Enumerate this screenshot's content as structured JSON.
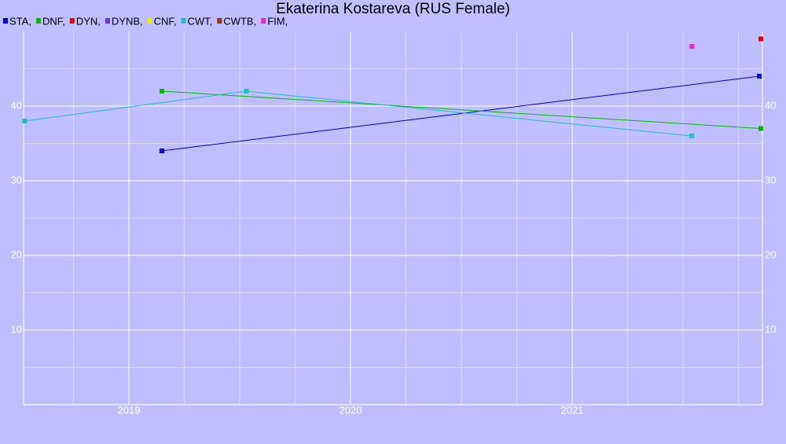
{
  "chart_data": {
    "type": "line",
    "title": "Ekaterina Kostareva (RUS Female)",
    "xlim": [
      2018.525,
      2021.858
    ],
    "xticks": [
      2019,
      2020,
      2021
    ],
    "ylim": [
      0,
      50
    ],
    "yticks": [
      10,
      20,
      30,
      40
    ],
    "grid": true,
    "legend": "top-left",
    "series": [
      {
        "name": "STA,",
        "color": "#0000cc",
        "x": [
          2019.149,
          2021.844
        ],
        "values": [
          34,
          44
        ]
      },
      {
        "name": "DNF,",
        "color": "#00bb00",
        "x": [
          2019.149,
          2021.851
        ],
        "values": [
          42,
          37
        ]
      },
      {
        "name": "DYN,",
        "color": "#ee0000",
        "x": [
          2021.851
        ],
        "values": [
          49
        ]
      },
      {
        "name": "DYNB,",
        "color": "#6633dd",
        "x": [],
        "values": []
      },
      {
        "name": "CNF,",
        "color": "#eeee00",
        "x": [],
        "values": []
      },
      {
        "name": "CWT,",
        "color": "#22bbcc",
        "x": [
          2018.53,
          2019.53,
          2021.54
        ],
        "values": [
          38,
          42,
          36
        ]
      },
      {
        "name": "CWTB,",
        "color": "#993300",
        "x": [],
        "values": []
      },
      {
        "name": "FIM,",
        "color": "#ee22cc",
        "x": [
          2021.54
        ],
        "values": [
          48
        ]
      }
    ]
  }
}
